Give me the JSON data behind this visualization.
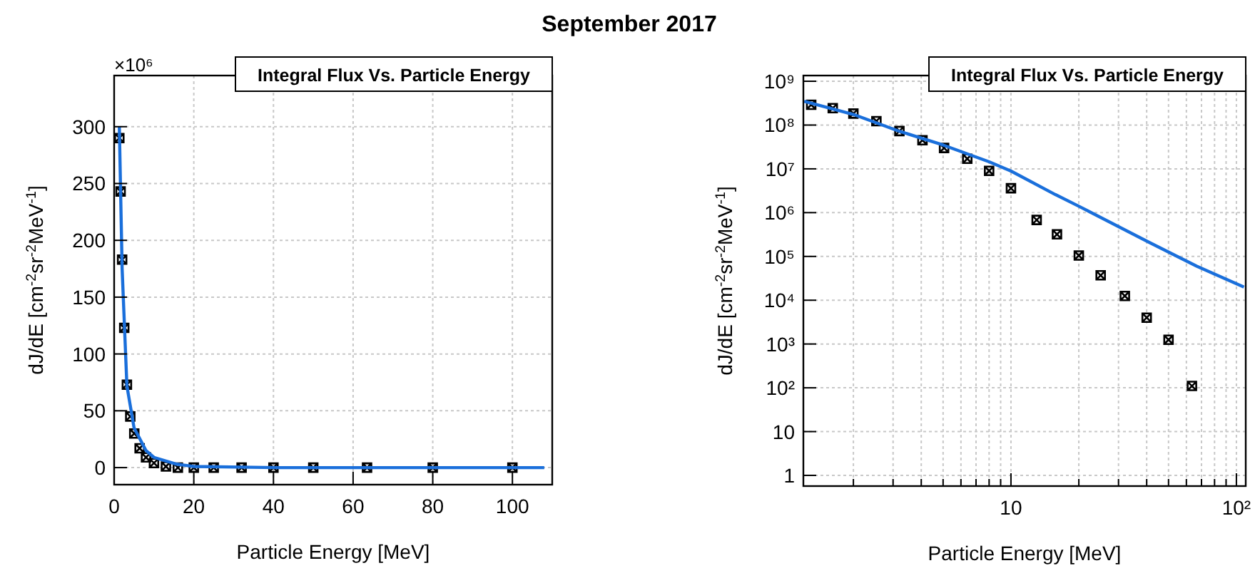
{
  "chart_data": [
    {
      "type": "scatter",
      "title": "Integral Flux Vs. Particle Energy",
      "xlabel": "Particle Energy [MeV]",
      "ylabel": "dJ/dE [cm$^{-2}$sr$^{-2}$MeV$^{-1}$]",
      "annotations": [
        "September 2017",
        "×10⁶"
      ],
      "xlim": [
        0,
        110
      ],
      "ylim": [
        -15,
        345
      ],
      "xticks": [
        0,
        20,
        40,
        60,
        80,
        100
      ],
      "yticks": [
        0,
        50,
        100,
        150,
        200,
        250,
        300
      ],
      "grid": true,
      "series": [
        {
          "marker": "cross",
          "color": "#000000",
          "x": [
            1.3,
            1.62,
            2.0,
            2.53,
            3.2,
            4.05,
            5.05,
            6.4,
            8.0,
            10,
            13,
            16,
            20,
            25,
            32,
            40,
            50,
            63.5,
            80,
            100
          ],
          "values": [
            290,
            243,
            183,
            123,
            73,
            45,
            30,
            17,
            9,
            4,
            1,
            0,
            0,
            0,
            0,
            0,
            0,
            0,
            0,
            0
          ]
        },
        {
          "type": "line",
          "marker": "none",
          "color": "#1a6fdb",
          "x": [
            1.3,
            2.0,
            3.2,
            5.0,
            8.0,
            10,
            15.7,
            20,
            41,
            66.7,
            108
          ],
          "values": [
            300,
            175,
            72,
            35,
            15,
            9,
            3,
            1,
            0,
            0,
            0
          ]
        }
      ]
    },
    {
      "type": "scatter",
      "title": "Integral Flux Vs. Particle Energy",
      "xlabel": "Particle Energy [MeV]",
      "ylabel": "dJ/dE [cm$^{-2}$sr$^{-2}$MeV$^{-1}$]",
      "log": "xy",
      "xlim": [
        1.2,
        110
      ],
      "ylim": [
        0.57,
        1350000000.0
      ],
      "xticks": [
        {
          "value": 2,
          "label": null
        },
        {
          "value": 3,
          "label": null
        },
        {
          "value": 4,
          "label": null
        },
        {
          "value": 5,
          "label": null
        },
        {
          "value": 6,
          "label": null
        },
        {
          "value": 7,
          "label": null
        },
        {
          "value": 8,
          "label": null
        },
        {
          "value": 9,
          "label": null
        },
        10,
        {
          "value": 20,
          "label": null
        },
        {
          "value": 30,
          "label": null
        },
        {
          "value": 40,
          "label": null
        },
        {
          "value": 50,
          "label": null
        },
        {
          "value": 60,
          "label": null
        },
        {
          "value": 70,
          "label": null
        },
        {
          "value": 80,
          "label": null
        },
        {
          "value": 90,
          "label": null
        },
        {
          "value": 100,
          "label": "10²"
        }
      ],
      "yticks": [
        1,
        10,
        {
          "value": 100,
          "label": "10²"
        },
        {
          "value": 1000,
          "label": "10³"
        },
        {
          "value": 10000,
          "label": "10⁴"
        },
        {
          "value": 100000,
          "label": "10⁵"
        },
        {
          "value": 1000000,
          "label": "10⁶"
        },
        {
          "value": 10000000,
          "label": "10⁷"
        },
        {
          "value": 100000000,
          "label": "10⁸"
        },
        {
          "value": 1000000000,
          "label": "10⁹"
        }
      ],
      "grid": true,
      "series": [
        {
          "marker": "cross",
          "color": "#000000",
          "x": [
            1.3,
            1.62,
            2.0,
            2.53,
            3.2,
            4.05,
            5.05,
            6.4,
            8.0,
            10,
            13,
            16,
            20,
            25,
            32,
            40,
            50,
            63.5
          ],
          "values": [
            290000000,
            243000000,
            183000000,
            123000000,
            73000000,
            45000000,
            30000000,
            17000000,
            9000000,
            3600000,
            680000,
            320000,
            105000,
            37000,
            12500,
            4000,
            1250,
            110
          ]
        },
        {
          "type": "line",
          "marker": "none",
          "color": "#1a6fdb",
          "x": [
            1.21,
            2.0,
            3.2,
            5.0,
            8.0,
            10,
            15.7,
            20,
            41,
            66.7,
            108
          ],
          "values": [
            350000000,
            175000000,
            72000000,
            35000000,
            14500000,
            8900000,
            2600000,
            1400000,
            210000,
            60000,
            20000
          ]
        }
      ]
    }
  ]
}
